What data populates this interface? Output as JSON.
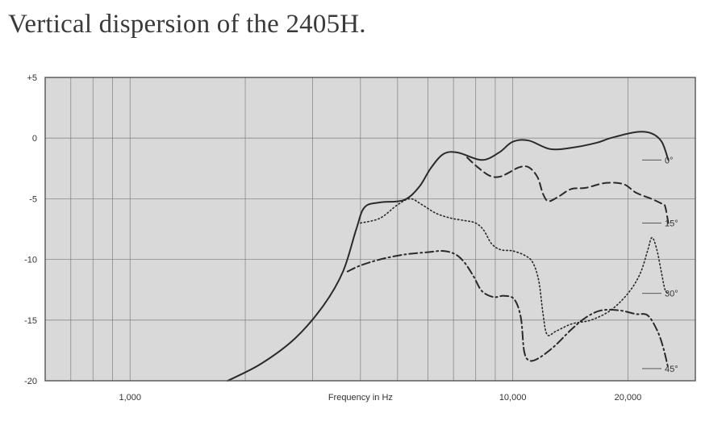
{
  "chart_data": {
    "type": "line",
    "title": "Vertical dispersion of the 2405H.",
    "xlabel": "Frequency in Hz",
    "ylabel": "",
    "x_scale": "log",
    "xlim": [
      600,
      30000
    ],
    "ylim": [
      -20,
      5
    ],
    "y_ticks": [
      {
        "value": 5,
        "label": "+5"
      },
      {
        "value": 0,
        "label": "0"
      },
      {
        "value": -5,
        "label": "-5"
      },
      {
        "value": -10,
        "label": "-10"
      },
      {
        "value": -15,
        "label": "-15"
      },
      {
        "value": -20,
        "label": "-20"
      }
    ],
    "x_ticks": [
      {
        "value": 1000,
        "label": "1,000"
      },
      {
        "value": 10000,
        "label": "10,000"
      },
      {
        "value": 20000,
        "label": "20,000"
      }
    ],
    "grid": true,
    "legend_position": "right",
    "series": [
      {
        "name": "0°",
        "dash": "solid",
        "points": [
          [
            1800,
            -20
          ],
          [
            2200,
            -18.6
          ],
          [
            2700,
            -16.5
          ],
          [
            3200,
            -13.8
          ],
          [
            3600,
            -11
          ],
          [
            3900,
            -7.5
          ],
          [
            4100,
            -5.7
          ],
          [
            4500,
            -5.3
          ],
          [
            5200,
            -5.1
          ],
          [
            5700,
            -4
          ],
          [
            6100,
            -2.5
          ],
          [
            6600,
            -1.3
          ],
          [
            7200,
            -1.2
          ],
          [
            8300,
            -1.8
          ],
          [
            9200,
            -1.2
          ],
          [
            10000,
            -0.3
          ],
          [
            11000,
            -0.2
          ],
          [
            12500,
            -0.9
          ],
          [
            14200,
            -0.8
          ],
          [
            16500,
            -0.4
          ],
          [
            18000,
            0
          ],
          [
            21000,
            0.5
          ],
          [
            23000,
            0.4
          ],
          [
            24500,
            -0.3
          ],
          [
            25500,
            -1.8
          ]
        ]
      },
      {
        "name": "15°",
        "dash": "dashed",
        "points": [
          [
            7600,
            -1.6
          ],
          [
            8100,
            -2.4
          ],
          [
            8700,
            -3.1
          ],
          [
            9200,
            -3.2
          ],
          [
            9700,
            -2.9
          ],
          [
            10400,
            -2.4
          ],
          [
            11000,
            -2.4
          ],
          [
            11600,
            -3.2
          ],
          [
            12000,
            -4.6
          ],
          [
            12400,
            -5.2
          ],
          [
            13200,
            -4.8
          ],
          [
            14200,
            -4.2
          ],
          [
            15500,
            -4.1
          ],
          [
            17500,
            -3.7
          ],
          [
            19500,
            -3.8
          ],
          [
            21000,
            -4.5
          ],
          [
            23000,
            -5.0
          ],
          [
            24500,
            -5.4
          ],
          [
            25000,
            -5.6
          ],
          [
            25500,
            -7
          ]
        ]
      },
      {
        "name": "30°",
        "dash": "dotted",
        "points": [
          [
            4000,
            -7.0
          ],
          [
            4500,
            -6.6
          ],
          [
            5000,
            -5.5
          ],
          [
            5400,
            -5.0
          ],
          [
            5800,
            -5.5
          ],
          [
            6300,
            -6.2
          ],
          [
            6900,
            -6.6
          ],
          [
            7500,
            -6.8
          ],
          [
            8000,
            -7.0
          ],
          [
            8400,
            -7.6
          ],
          [
            8800,
            -8.7
          ],
          [
            9300,
            -9.2
          ],
          [
            10000,
            -9.3
          ],
          [
            10800,
            -9.7
          ],
          [
            11300,
            -10.3
          ],
          [
            11700,
            -11.8
          ],
          [
            12000,
            -14.5
          ],
          [
            12300,
            -16.2
          ],
          [
            13000,
            -15.9
          ],
          [
            14300,
            -15.3
          ],
          [
            16000,
            -15.0
          ],
          [
            18000,
            -14.2
          ],
          [
            20000,
            -12.8
          ],
          [
            21500,
            -11.2
          ],
          [
            22500,
            -9.3
          ],
          [
            23100,
            -8.2
          ],
          [
            23800,
            -9.2
          ],
          [
            24500,
            -11.2
          ],
          [
            25000,
            -12.5
          ],
          [
            25500,
            -12.8
          ]
        ]
      },
      {
        "name": "45°",
        "dash": "dashdot",
        "points": [
          [
            3700,
            -11
          ],
          [
            4000,
            -10.5
          ],
          [
            4500,
            -10.0
          ],
          [
            5200,
            -9.6
          ],
          [
            6000,
            -9.4
          ],
          [
            6600,
            -9.3
          ],
          [
            7100,
            -9.6
          ],
          [
            7500,
            -10.3
          ],
          [
            7900,
            -11.4
          ],
          [
            8300,
            -12.6
          ],
          [
            8900,
            -13.1
          ],
          [
            9500,
            -13.0
          ],
          [
            10100,
            -13.3
          ],
          [
            10500,
            -14.8
          ],
          [
            10700,
            -17.5
          ],
          [
            11000,
            -18.3
          ],
          [
            11600,
            -18.2
          ],
          [
            12800,
            -17.2
          ],
          [
            14200,
            -15.8
          ],
          [
            15500,
            -14.8
          ],
          [
            17000,
            -14.2
          ],
          [
            19000,
            -14.2
          ],
          [
            21000,
            -14.5
          ],
          [
            22500,
            -14.6
          ],
          [
            23800,
            -15.8
          ],
          [
            24700,
            -17.2
          ],
          [
            25500,
            -19
          ]
        ]
      }
    ]
  }
}
